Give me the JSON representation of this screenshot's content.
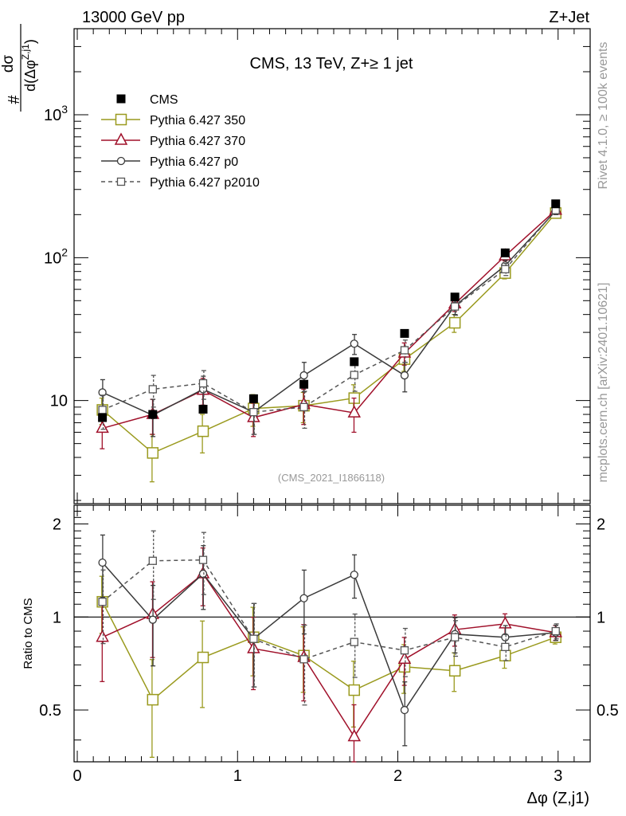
{
  "header": {
    "left": "13000 GeV pp",
    "right": "Z+Jet"
  },
  "side_labels": {
    "rivet": "Rivet 4.1.0, ≥ 100k events",
    "mcplots": "mcplots.cern.ch [arXiv:2401.10621]"
  },
  "chart_data": {
    "type": "line",
    "title": "CMS, 13 TeV, Z+≥ 1 jet",
    "analysis_id": "(CMS_2021_I1866118)",
    "ylabel": "#  dσ / d(Δφ^{Z,j1})",
    "xlabel": "Δφ (Z,j1)",
    "xlim": [
      -0.02,
      3.2
    ],
    "ylim_log": [
      1.9,
      4000
    ],
    "y_scale": "log",
    "x_ticks": [
      "0",
      "1",
      "2",
      "3"
    ],
    "y_ticks": [
      "10",
      "10^2",
      "10^3"
    ],
    "legend_placement": "top-left",
    "ratio": {
      "ylabel": "Ratio to CMS",
      "ylim": [
        0.34,
        2.3
      ],
      "y_ticks": [
        "0.5",
        "1",
        "2"
      ],
      "reference": 1
    },
    "x": [
      0.157,
      0.471,
      0.785,
      1.1,
      1.414,
      1.728,
      2.042,
      2.356,
      2.67,
      2.985
    ],
    "data": {
      "name": "CMS",
      "values": [
        7.6,
        8.0,
        8.7,
        10.3,
        13.0,
        18.7,
        29.5,
        53.0,
        108,
        238
      ]
    },
    "series": [
      {
        "name": "Pythia 6.427 350",
        "color": "#9a9a1e",
        "marker": "square-open",
        "dash": "solid",
        "values": [
          8.6,
          4.3,
          6.1,
          8.8,
          9.2,
          10.4,
          19.5,
          35.0,
          78,
          205
        ],
        "ratio": [
          1.12,
          0.54,
          0.74,
          0.86,
          0.75,
          0.58,
          0.69,
          0.67,
          0.75,
          0.86
        ],
        "err_lo": [
          1.8,
          1.6,
          1.8,
          2.2,
          2.2,
          2.5,
          3.5,
          5.0,
          7.0,
          10.0
        ],
        "err_hi": [
          1.8,
          1.5,
          1.9,
          2.2,
          2.2,
          2.5,
          3.5,
          5.0,
          7.0,
          10.0
        ]
      },
      {
        "name": "Pythia 6.427 370",
        "color": "#a0102a",
        "marker": "triangle-open",
        "dash": "solid",
        "values": [
          6.4,
          8.0,
          11.8,
          7.6,
          9.4,
          8.2,
          21.5,
          47.5,
          103,
          215
        ],
        "ratio": [
          0.86,
          1.02,
          1.38,
          0.79,
          0.74,
          0.41,
          0.73,
          0.91,
          0.95,
          0.89
        ],
        "err_lo": [
          1.8,
          2.2,
          2.5,
          2.0,
          2.6,
          2.2,
          3.8,
          5.5,
          8.0,
          12.0
        ],
        "err_hi": [
          1.8,
          2.2,
          2.5,
          2.0,
          2.6,
          2.2,
          3.8,
          5.5,
          8.0,
          12.0
        ]
      },
      {
        "name": "Pythia 6.427 p0",
        "color": "#3a3a3a",
        "marker": "circle-open",
        "dash": "solid",
        "values": [
          11.4,
          7.9,
          12.0,
          8.3,
          15.0,
          25.0,
          15.0,
          46.0,
          88,
          212
        ],
        "ratio": [
          1.5,
          0.98,
          1.38,
          0.85,
          1.15,
          1.37,
          0.5,
          0.88,
          0.86,
          0.89
        ],
        "err_lo": [
          2.6,
          2.3,
          2.8,
          2.5,
          3.5,
          4.0,
          3.5,
          6.0,
          8.0,
          12.0
        ],
        "err_hi": [
          2.6,
          2.3,
          2.8,
          2.5,
          3.5,
          4.0,
          3.5,
          6.0,
          8.0,
          12.0
        ]
      },
      {
        "name": "Pythia 6.427 p2010",
        "color": "#555555",
        "marker": "square-open-small",
        "dash": "dashed",
        "values": [
          8.6,
          12.0,
          13.2,
          8.3,
          9.0,
          15.1,
          22.5,
          45.5,
          83,
          215
        ],
        "ratio": [
          1.12,
          1.52,
          1.53,
          0.85,
          0.73,
          0.83,
          0.78,
          0.86,
          0.8,
          0.9
        ],
        "err_lo": [
          2.3,
          3.0,
          3.0,
          2.5,
          2.6,
          3.5,
          4.0,
          6.0,
          8.0,
          12.0
        ],
        "err_hi": [
          2.3,
          3.0,
          3.0,
          2.5,
          2.6,
          3.5,
          4.0,
          6.0,
          8.0,
          12.0
        ]
      }
    ]
  }
}
